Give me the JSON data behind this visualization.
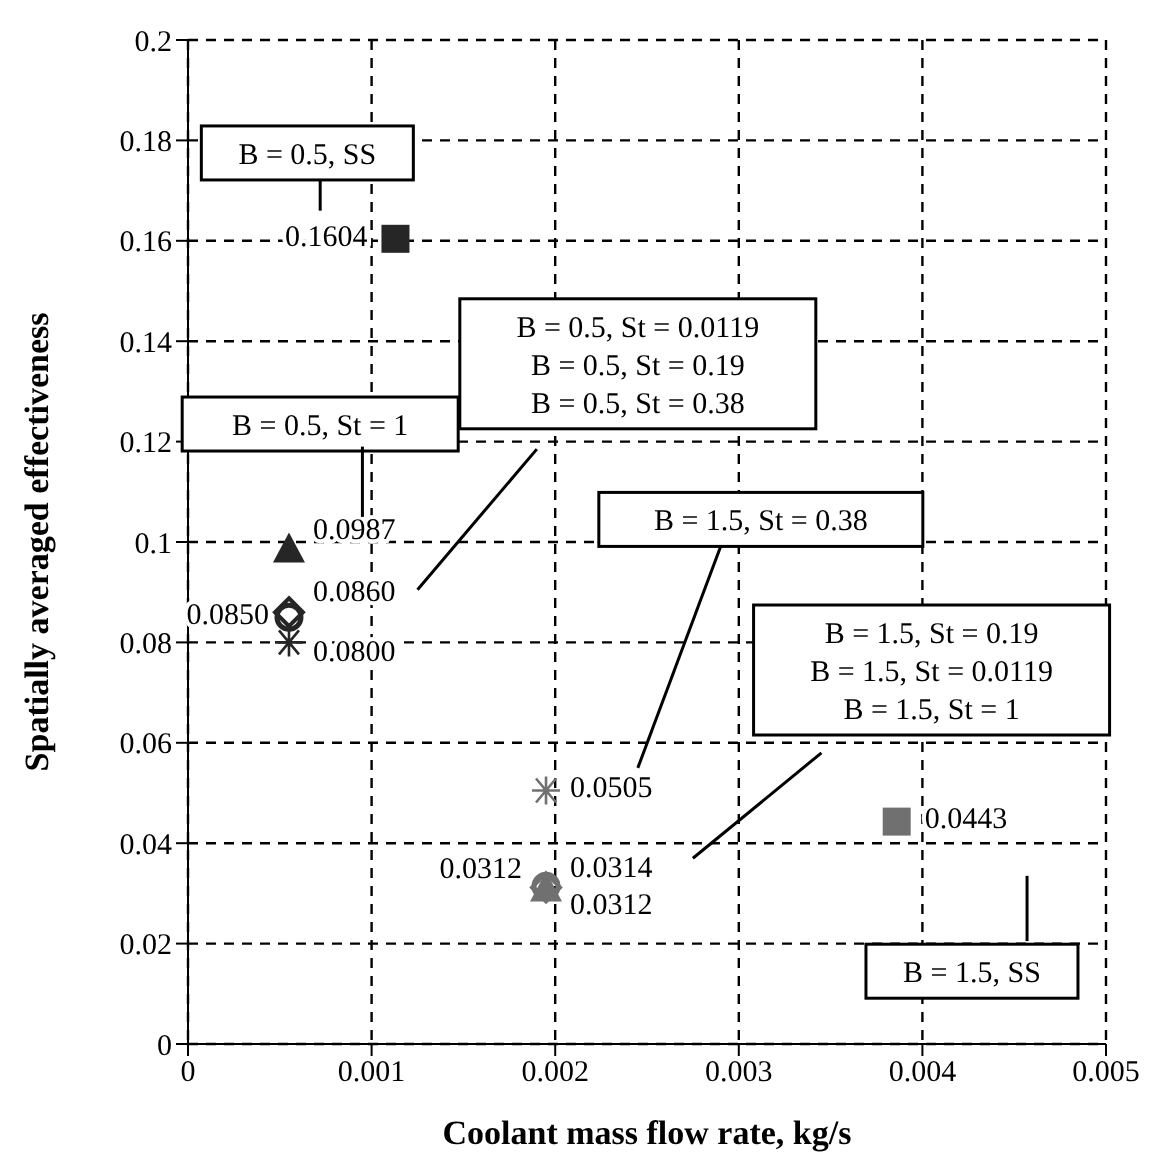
{
  "chart_data": {
    "type": "scatter",
    "xlabel": "Coolant mass flow rate, kg/s",
    "ylabel": "Spatially averaged effectiveness",
    "xlim": [
      0,
      0.005
    ],
    "xticks": [
      0,
      0.001,
      0.002,
      0.003,
      0.004,
      0.005
    ],
    "ylim": [
      0,
      0.2
    ],
    "yticks": [
      0,
      0.02,
      0.04,
      0.06,
      0.08,
      0.1,
      0.12,
      0.14,
      0.16,
      0.18,
      0.2
    ],
    "grid": true,
    "line_style": "dashed",
    "series": [
      {
        "x": [
          0.00113
        ],
        "values": [
          0.1604
        ],
        "color": "#262626",
        "marker": "square",
        "value_labels": [
          "0.1604"
        ]
      },
      {
        "x": [
          0.00055
        ],
        "values": [
          0.0987
        ],
        "color": "#262626",
        "marker": "triangle",
        "value_labels": [
          "0.0987"
        ]
      },
      {
        "x": [
          0.00055
        ],
        "values": [
          0.086
        ],
        "color": "#262626",
        "marker": "diamond",
        "value_labels": [
          "0.0860"
        ]
      },
      {
        "x": [
          0.00055
        ],
        "values": [
          0.085
        ],
        "color": "#262626",
        "marker": "circle",
        "value_labels": [
          "0.0850"
        ]
      },
      {
        "x": [
          0.00055
        ],
        "values": [
          0.08
        ],
        "color": "#262626",
        "marker": "cross",
        "value_labels": [
          "0.0800"
        ]
      },
      {
        "x": [
          0.00195
        ],
        "values": [
          0.0505
        ],
        "color": "#707070",
        "marker": "cross",
        "value_labels": [
          "0.0505"
        ]
      },
      {
        "x": [
          0.00195
        ],
        "values": [
          0.0314
        ],
        "color": "#707070",
        "marker": "circle",
        "value_labels": [
          "0.0314"
        ]
      },
      {
        "x": [
          0.00195
        ],
        "values": [
          0.0312
        ],
        "color": "#707070",
        "marker": "diamond",
        "value_labels": [
          "0.0312"
        ]
      },
      {
        "x": [
          0.00195
        ],
        "values": [
          0.0312
        ],
        "color": "#707070",
        "marker": "triangle",
        "value_labels": [
          "0.0312"
        ]
      },
      {
        "x": [
          0.00386
        ],
        "values": [
          0.0443
        ],
        "color": "#707070",
        "marker": "square",
        "value_labels": [
          "0.0443"
        ]
      }
    ],
    "annotations": [
      "B = 0.5, SS",
      "B = 0.5, St = 1",
      "B = 0.5, St = 0.0119\nB = 0.5, St = 0.19\nB = 0.5, St = 0.38",
      "B = 1.5, St = 0.38",
      "B = 1.5, St = 0.19\nB = 1.5, St = 0.0119\nB = 1.5, St = 1",
      "B = 1.5, SS"
    ]
  }
}
